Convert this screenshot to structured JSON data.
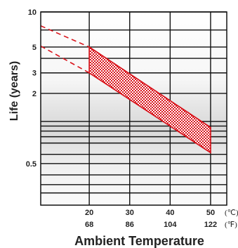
{
  "chart_data": {
    "type": "area",
    "title": "",
    "xlabel": "Ambient Temperature",
    "ylabel": "Life (years)",
    "x_unit_primary": "(℃)",
    "x_unit_secondary": "(℉)",
    "xlim": [
      8,
      54
    ],
    "ylim": [
      0.22,
      10
    ],
    "y_scale": "log",
    "grid": true,
    "x_ticks": [
      {
        "value": 20,
        "label_c": "20",
        "label_f": "68"
      },
      {
        "value": 30,
        "label_c": "30",
        "label_f": "86"
      },
      {
        "value": 40,
        "label_c": "40",
        "label_f": "104"
      },
      {
        "value": 50,
        "label_c": "50",
        "label_f": "122"
      }
    ],
    "y_ticks": [
      {
        "value": 10,
        "label": "10"
      },
      {
        "value": 5,
        "label": "5"
      },
      {
        "value": 3,
        "label": "3"
      },
      {
        "value": 2,
        "label": "2"
      },
      {
        "value": 0.5,
        "label": "0.5"
      }
    ],
    "y_gridlines": [
      10,
      7,
      5,
      4,
      3,
      2,
      1.15,
      1.05,
      0.95,
      0.85,
      0.75,
      0.6,
      0.5,
      0.4,
      0.33,
      0.28
    ],
    "x_gridlines": [
      20,
      30,
      40,
      50
    ],
    "series": [
      {
        "style": "band-upper",
        "x": [
          20,
          50
        ],
        "y": [
          5.0,
          1.02
        ]
      },
      {
        "style": "band-lower",
        "x": [
          20,
          50
        ],
        "y": [
          3.0,
          0.62
        ]
      },
      {
        "style": "dashed-upper",
        "x": [
          8,
          20
        ],
        "y": [
          7.6,
          5.0
        ]
      },
      {
        "style": "dashed-lower",
        "x": [
          8,
          20
        ],
        "y": [
          5.1,
          3.0
        ]
      }
    ],
    "colors": {
      "band": "#d9141c",
      "grid": "#111111"
    }
  }
}
